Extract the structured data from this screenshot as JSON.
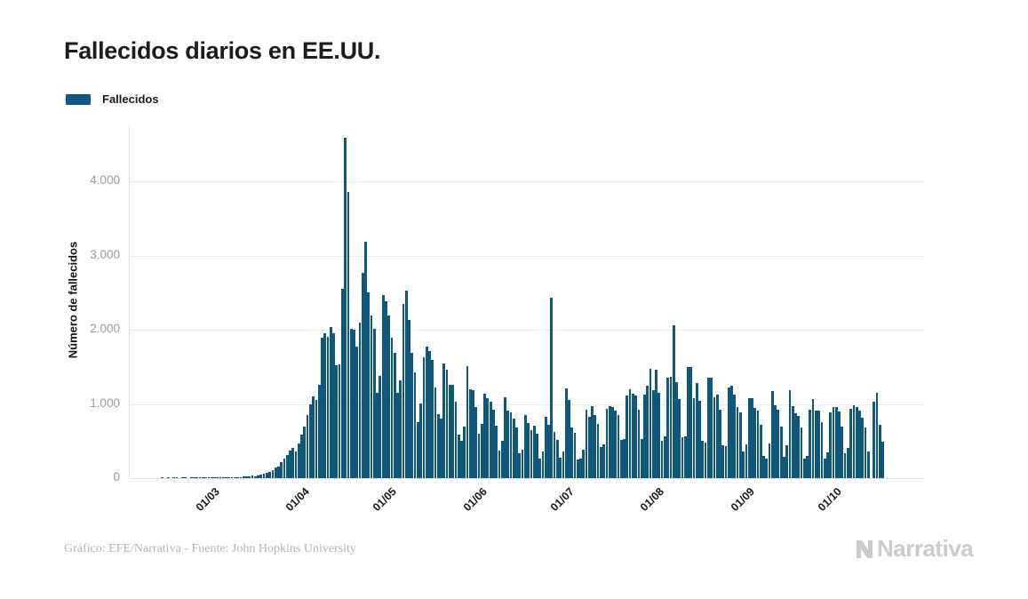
{
  "header": {
    "title": "Fallecidos diarios en EE.UU."
  },
  "legend": {
    "items": [
      {
        "label": "Fallecidos",
        "color": "#0f587c"
      }
    ]
  },
  "chart_data": {
    "type": "bar",
    "title": "Fallecidos diarios en EE.UU.",
    "series_name": "Fallecidos",
    "xlabel": "",
    "ylabel": "Número de fallecidos",
    "bar_color": "#0f587c",
    "grid_color": "#ececec",
    "ylim": [
      0,
      4800
    ],
    "grid": true,
    "legend_position": "top-left",
    "yticks": [
      {
        "value": 0,
        "label": "0"
      },
      {
        "value": 1000,
        "label": "1.000"
      },
      {
        "value": 2000,
        "label": "2.000"
      },
      {
        "value": 3000,
        "label": "3.000"
      },
      {
        "value": 4000,
        "label": "4.000"
      }
    ],
    "x_start": "01/02/2020",
    "x_domain_days": 274,
    "xticks": [
      {
        "day": 29,
        "label": "01/03"
      },
      {
        "day": 60,
        "label": "01/04"
      },
      {
        "day": 90,
        "label": "01/05"
      },
      {
        "day": 121,
        "label": "01/06"
      },
      {
        "day": 151,
        "label": "01/07"
      },
      {
        "day": 182,
        "label": "01/08"
      },
      {
        "day": 213,
        "label": "01/09"
      },
      {
        "day": 243,
        "label": "01/10"
      }
    ],
    "values": [
      0,
      0,
      0,
      0,
      0,
      0,
      0,
      0,
      0,
      0,
      0,
      1,
      0,
      1,
      0,
      1,
      1,
      0,
      1,
      1,
      0,
      1,
      1,
      1,
      2,
      1,
      2,
      2,
      3,
      4,
      5,
      4,
      6,
      5,
      7,
      8,
      9,
      11,
      14,
      20,
      24,
      28,
      33,
      30,
      38,
      50,
      59,
      67,
      84,
      108,
      138,
      150,
      214,
      268,
      308,
      368,
      412,
      355,
      470,
      590,
      700,
      850,
      1000,
      1100,
      1050,
      1255,
      1900,
      1950,
      1901,
      2035,
      1960,
      1528,
      1535,
      2550,
      4591,
      3857,
      2016,
      2000,
      1772,
      2100,
      2765,
      3190,
      2505,
      2200,
      2015,
      1150,
      1384,
      2470,
      2390,
      2200,
      1897,
      1691,
      1154,
      1324,
      2350,
      2528,
      2129,
      1687,
      1422,
      750,
      1008,
      1630,
      1772,
      1715,
      1595,
      1218,
      865,
      808,
      1552,
      1461,
      1263,
      1260,
      1035,
      592,
      500,
      693,
      1505,
      1199,
      1193,
      960,
      605,
      730,
      1134,
      1083,
      1031,
      921,
      709,
      373,
      498,
      1093,
      906,
      891,
      802,
      683,
      331,
      389,
      852,
      745,
      649,
      712,
      597,
      267,
      358,
      826,
      722,
      2437,
      618,
      512,
      271,
      355,
      1210,
      1060,
      680,
      610,
      252,
      265,
      386,
      926,
      829,
      966,
      849,
      737,
      420,
      455,
      935,
      974,
      963,
      908,
      853,
      516,
      531,
      1119,
      1205,
      1140,
      1120,
      918,
      532,
      1126,
      1244,
      1470,
      1187,
      1461,
      1148,
      508,
      561,
      1349,
      1362,
      2060,
      1290,
      1064,
      546,
      563,
      1504,
      1499,
      1076,
      1279,
      1042,
      506,
      477,
      1358,
      1356,
      1091,
      1122,
      926,
      447,
      430,
      1222,
      1250,
      1126,
      961,
      891,
      363,
      459,
      1083,
      1077,
      949,
      909,
      723,
      298,
      267,
      463,
      1171,
      979,
      920,
      691,
      287,
      440,
      1190,
      975,
      877,
      836,
      686,
      258,
      297,
      922,
      1066,
      911,
      916,
      756,
      268,
      344,
      891,
      954,
      955,
      905,
      700,
      330,
      405,
      940,
      985,
      960,
      915,
      820,
      680,
      360,
      0,
      1030,
      1155,
      720,
      490
    ]
  },
  "footer": {
    "credit": "Gráfico: EFE/Narrativa - Fuente: John Hopkins University",
    "watermark": "Narrativa"
  }
}
